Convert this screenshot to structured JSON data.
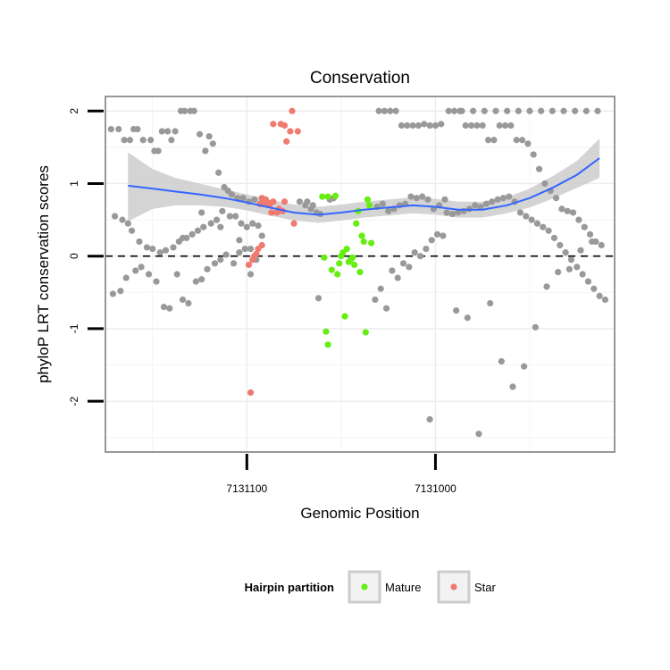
{
  "chart_data": {
    "type": "scatter",
    "title": "Conservation",
    "xlabel": "Genomic Position",
    "ylabel": "phyloP LRT conservation scores",
    "x_tick_labels": [
      "7131100",
      "7131000"
    ],
    "y_tick_labels": [
      "-2",
      "-1",
      "0",
      "1",
      "2"
    ],
    "y_ticks": [
      -2,
      -1,
      0,
      1,
      2
    ],
    "xlim": [
      7131175,
      7130905
    ],
    "ylim": [
      -2.7,
      2.2
    ],
    "x_reversed": true,
    "grid": true,
    "reference_line": {
      "y": 0,
      "style": "dashed"
    },
    "legend": {
      "title": "Hairpin partition",
      "placement": "bottom",
      "entries": [
        {
          "name": "Mature",
          "color": "#66ee11"
        },
        {
          "name": "Star",
          "color": "#f07a70"
        }
      ]
    },
    "colors": {
      "other": "#999999",
      "mature": "#66ee11",
      "star": "#f07a70",
      "smooth": "#3366ff",
      "ribbon": "#cccccc"
    },
    "smooth": {
      "x": [
        7131163,
        7131150,
        7131138,
        7131125,
        7131112,
        7131100,
        7131088,
        7131075,
        7131062,
        7131050,
        7131038,
        7131025,
        7131012,
        7131000,
        7130988,
        7130975,
        7130962,
        7130950,
        7130938,
        7130925,
        7130913
      ],
      "y": [
        0.97,
        0.93,
        0.89,
        0.85,
        0.8,
        0.74,
        0.67,
        0.6,
        0.57,
        0.6,
        0.64,
        0.67,
        0.7,
        0.68,
        0.64,
        0.64,
        0.7,
        0.8,
        0.94,
        1.12,
        1.35
      ],
      "lower": [
        0.48,
        0.65,
        0.7,
        0.7,
        0.68,
        0.63,
        0.56,
        0.49,
        0.46,
        0.49,
        0.53,
        0.56,
        0.59,
        0.57,
        0.53,
        0.53,
        0.59,
        0.67,
        0.79,
        0.94,
        1.08
      ],
      "upper": [
        1.43,
        1.2,
        1.08,
        1.0,
        0.92,
        0.85,
        0.78,
        0.71,
        0.68,
        0.71,
        0.75,
        0.78,
        0.81,
        0.79,
        0.75,
        0.75,
        0.81,
        0.93,
        1.1,
        1.31,
        1.62
      ]
    },
    "series": [
      {
        "name": "Mature",
        "x": [
          7131060,
          7131057,
          7131059,
          7131053,
          7131051,
          7131055,
          7131049,
          7131047,
          7131045,
          7131043,
          7131048,
          7131044,
          7131042,
          7131040,
          7131041,
          7131038,
          7131036,
          7131039,
          7131034,
          7131052,
          7131058,
          7131057,
          7131050,
          7131046,
          7131037,
          7131035
        ],
        "y": [
          0.82,
          0.82,
          -0.02,
          0.83,
          -0.1,
          -0.19,
          0.05,
          0.1,
          -0.05,
          -0.12,
          -0.83,
          -0.02,
          0.45,
          -0.22,
          0.62,
          0.2,
          0.78,
          0.28,
          0.18,
          -0.25,
          -1.04,
          -1.22,
          0.0,
          -0.08,
          -1.05,
          0.7
        ]
      },
      {
        "name": "Star",
        "x": [
          7131099,
          7131097,
          7131092,
          7131095,
          7131092,
          7131090,
          7131088,
          7131086,
          7131082,
          7131080,
          7131079,
          7131084,
          7131081,
          7131083,
          7131077,
          7131076,
          7131088,
          7131086,
          7131091,
          7131093,
          7131094,
          7131096,
          7131098,
          7131087,
          7131075,
          7131073,
          7131080
        ],
        "y": [
          -0.12,
          -0.05,
          0.15,
          0.03,
          0.8,
          0.78,
          0.73,
          0.75,
          1.82,
          1.8,
          1.58,
          0.6,
          0.62,
          0.65,
          1.72,
          2.0,
          0.7,
          1.82,
          0.72,
          0.72,
          0.1,
          0.0,
          -1.88,
          0.6,
          0.45,
          1.72,
          0.75
        ]
      },
      {
        "name": "other",
        "x": [
          7131172,
          7131168,
          7131165,
          7131162,
          7131160,
          7131158,
          7131155,
          7131151,
          7131149,
          7131147,
          7131145,
          7131142,
          7131140,
          7131138,
          7131135,
          7131133,
          7131130,
          7131128,
          7131125,
          7131122,
          7131120,
          7131118,
          7131115,
          7131112,
          7131110,
          7131108,
          7131105,
          7131102,
          7131099,
          7131096,
          7131093,
          7131170,
          7131166,
          7131163,
          7131161,
          7131157,
          7131153,
          7131150,
          7131146,
          7131143,
          7131139,
          7131136,
          7131132,
          7131129,
          7131126,
          7131123,
          7131119,
          7131116,
          7131113,
          7131109,
          7131106,
          7131103,
          7131100,
          7131097,
          7131094,
          7131171,
          7131167,
          7131164,
          7131159,
          7131156,
          7131152,
          7131148,
          7131144,
          7131141,
          7131137,
          7131134,
          7131131,
          7131127,
          7131124,
          7131121,
          7131117,
          7131114,
          7131111,
          7131107,
          7131104,
          7131101,
          7131098,
          7131095,
          7131134,
          7131124,
          7131114,
          7131104,
          7131098,
          7131092,
          7131072,
          7131069,
          7131066,
          7131063,
          7131061,
          7131056,
          7131054,
          7131031,
          7131028,
          7131025,
          7131022,
          7131019,
          7131016,
          7131013,
          7131010,
          7131007,
          7131004,
          7131001,
          7130998,
          7130995,
          7131068,
          7131065,
          7131062,
          7131032,
          7131029,
          7131026,
          7131023,
          7131020,
          7131017,
          7131014,
          7131011,
          7131008,
          7131005,
          7131002,
          7130999,
          7130996,
          7131030,
          7131027,
          7131024,
          7131021,
          7131018,
          7131015,
          7131012,
          7131009,
          7131006,
          7131003,
          7131000,
          7130997,
          7131003,
          7130994,
          7130991,
          7130988,
          7130985,
          7130982,
          7130979,
          7130976,
          7130973,
          7130970,
          7130967,
          7130964,
          7130961,
          7130958,
          7130955,
          7130952,
          7130949,
          7130946,
          7130943,
          7130940,
          7130937,
          7130934,
          7130931,
          7130928,
          7130925,
          7130922,
          7130919,
          7130916,
          7130913,
          7130910,
          7130993,
          7130990,
          7130987,
          7130984,
          7130981,
          7130978,
          7130975,
          7130972,
          7130969,
          7130966,
          7130963,
          7130960,
          7130957,
          7130954,
          7130951,
          7130948,
          7130945,
          7130942,
          7130939,
          7130936,
          7130933,
          7130930,
          7130927,
          7130924,
          7130921,
          7130918,
          7130915,
          7130912,
          7130989,
          7130983,
          7130977,
          7130971,
          7130965,
          7130959,
          7130953,
          7130947,
          7130941,
          7130935,
          7130929,
          7130923,
          7130917,
          7130986,
          7130980,
          7130974,
          7130968,
          7130962,
          7130956,
          7130950,
          7130944,
          7130938,
          7130932,
          7130926,
          7130920,
          7130914
        ],
        "y": [
          1.75,
          1.75,
          1.6,
          1.6,
          1.75,
          1.75,
          1.6,
          1.6,
          1.45,
          1.45,
          1.72,
          1.72,
          1.6,
          1.72,
          2.0,
          2.0,
          2.0,
          2.0,
          1.68,
          1.45,
          1.65,
          1.55,
          1.15,
          0.95,
          0.9,
          0.85,
          0.8,
          0.8,
          0.75,
          0.78,
          0.72,
          0.55,
          0.5,
          0.45,
          0.35,
          0.2,
          0.12,
          0.1,
          0.05,
          0.08,
          0.12,
          0.2,
          0.25,
          0.3,
          0.35,
          0.4,
          0.45,
          0.5,
          0.62,
          0.55,
          0.55,
          0.45,
          0.4,
          0.45,
          0.42,
          -0.52,
          -0.48,
          -0.3,
          -0.2,
          -0.15,
          -0.25,
          -0.35,
          -0.7,
          -0.72,
          -0.25,
          -0.6,
          -0.65,
          -0.35,
          -0.32,
          -0.18,
          -0.1,
          -0.05,
          0.02,
          -0.1,
          0.05,
          0.1,
          -0.25,
          -0.05,
          0.25,
          0.6,
          0.4,
          0.22,
          0.1,
          0.28,
          0.75,
          0.7,
          0.65,
          0.6,
          0.58,
          0.78,
          0.8,
          0.68,
          0.72,
          0.62,
          0.65,
          0.7,
          0.72,
          0.82,
          0.8,
          0.82,
          0.78,
          0.65,
          0.7,
          0.78,
          0.75,
          0.7,
          -0.58,
          -0.6,
          -0.45,
          -0.72,
          -0.2,
          -0.3,
          -0.1,
          -0.15,
          0.05,
          0.0,
          0.1,
          0.22,
          0.3,
          0.28,
          2.0,
          2.0,
          2.0,
          2.0,
          1.8,
          1.8,
          1.8,
          1.8,
          1.82,
          1.8,
          1.8,
          1.82,
          -2.25,
          0.6,
          0.58,
          0.6,
          0.62,
          0.65,
          0.7,
          0.68,
          0.72,
          0.75,
          0.78,
          0.8,
          0.82,
          0.75,
          0.6,
          0.55,
          0.5,
          0.45,
          0.4,
          0.35,
          0.25,
          0.15,
          0.05,
          -0.05,
          -0.15,
          -0.25,
          -0.35,
          -0.45,
          -0.55,
          -0.6,
          2.0,
          2.0,
          2.0,
          1.8,
          1.8,
          1.8,
          1.8,
          1.6,
          1.6,
          1.8,
          1.8,
          1.8,
          1.6,
          1.6,
          1.55,
          1.4,
          1.2,
          1.0,
          0.9,
          0.8,
          0.65,
          0.62,
          0.6,
          0.5,
          0.4,
          0.3,
          0.2,
          0.15,
          -0.75,
          -0.85,
          -2.45,
          -0.65,
          -1.45,
          -1.8,
          -1.52,
          -0.98,
          -0.42,
          -0.22,
          -0.18,
          0.08,
          0.2,
          2.0,
          2.0,
          2.0,
          2.0,
          2.0,
          2.0,
          2.0,
          2.0,
          2.0,
          2.0,
          2.0,
          2.0,
          2.0
        ]
      }
    ]
  }
}
